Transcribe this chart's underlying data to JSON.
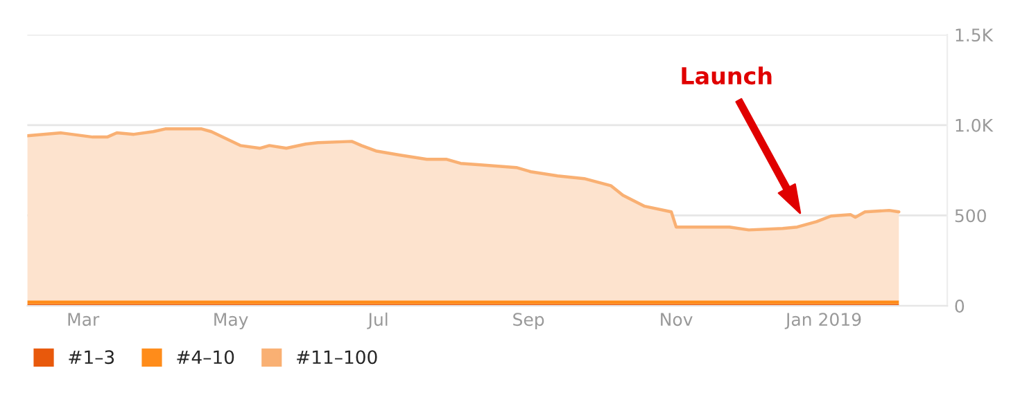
{
  "chart_data": {
    "type": "area",
    "stacked": true,
    "x": [
      "2018-02-06",
      "2018-02-20",
      "2018-03-05",
      "2018-03-11",
      "2018-03-15",
      "2018-03-22",
      "2018-03-30",
      "2018-04-04",
      "2018-04-12",
      "2018-04-19",
      "2018-04-23",
      "2018-04-29",
      "2018-05-05",
      "2018-05-13",
      "2018-05-17",
      "2018-05-24",
      "2018-06-01",
      "2018-06-06",
      "2018-06-20",
      "2018-06-24",
      "2018-06-30",
      "2018-07-10",
      "2018-07-21",
      "2018-07-29",
      "2018-08-04",
      "2018-08-12",
      "2018-08-27",
      "2018-09-02",
      "2018-09-13",
      "2018-09-24",
      "2018-10-05",
      "2018-10-10",
      "2018-10-19",
      "2018-10-30",
      "2018-11-01",
      "2018-11-12",
      "2018-11-23",
      "2018-12-01",
      "2018-12-15",
      "2018-12-21",
      "2018-12-29",
      "2019-01-04",
      "2019-01-12",
      "2019-01-14",
      "2019-01-18",
      "2019-01-28",
      "2019-02-01"
    ],
    "series": [
      {
        "name": "#1–3",
        "color": "#e8590c",
        "values": [
          10,
          10,
          10,
          10,
          10,
          10,
          10,
          10,
          10,
          10,
          10,
          10,
          10,
          10,
          10,
          10,
          10,
          10,
          10,
          10,
          10,
          10,
          10,
          10,
          10,
          10,
          10,
          10,
          10,
          10,
          10,
          10,
          10,
          10,
          10,
          10,
          10,
          10,
          10,
          10,
          10,
          10,
          10,
          10,
          10,
          10,
          10
        ]
      },
      {
        "name": "#4–10",
        "color": "#ff8c1a",
        "values": [
          20,
          20,
          20,
          20,
          20,
          20,
          20,
          20,
          20,
          20,
          20,
          20,
          20,
          20,
          20,
          20,
          20,
          20,
          20,
          20,
          20,
          20,
          20,
          20,
          20,
          20,
          20,
          20,
          20,
          20,
          20,
          20,
          20,
          20,
          20,
          20,
          20,
          20,
          20,
          20,
          20,
          20,
          20,
          20,
          20,
          20,
          20
        ]
      },
      {
        "name": "#11–100",
        "color": "#f9b073",
        "values": [
          911,
          927,
          904,
          904,
          927,
          919,
          934,
          949,
          949,
          949,
          934,
          896,
          857,
          842,
          857,
          842,
          865,
          873,
          880,
          857,
          827,
          804,
          781,
          781,
          758,
          750,
          735,
          712,
          689,
          674,
          635,
          582,
          521,
          490,
          406,
          406,
          406,
          390,
          398,
          406,
          436,
          467,
          475,
          460,
          490,
          498,
          490
        ]
      }
    ],
    "xlim": [
      "2018-02-06",
      "2019-02-21"
    ],
    "xticks": [
      {
        "value": "2018-03-01",
        "label": "Mar"
      },
      {
        "value": "2018-05-01",
        "label": "May"
      },
      {
        "value": "2018-07-01",
        "label": "Jul"
      },
      {
        "value": "2018-09-01",
        "label": "Sep"
      },
      {
        "value": "2018-11-01",
        "label": "Nov"
      },
      {
        "value": "2019-01-01",
        "label": "Jan 2019"
      }
    ],
    "ylim": [
      0,
      1500
    ],
    "yticks": [
      0,
      500,
      {
        "value": 1000,
        "label": "1.0K"
      },
      {
        "value": 1500,
        "label": "1.5K"
      }
    ],
    "grid": "y",
    "legend": "bottom left",
    "annotations": [
      "Launch"
    ]
  }
}
